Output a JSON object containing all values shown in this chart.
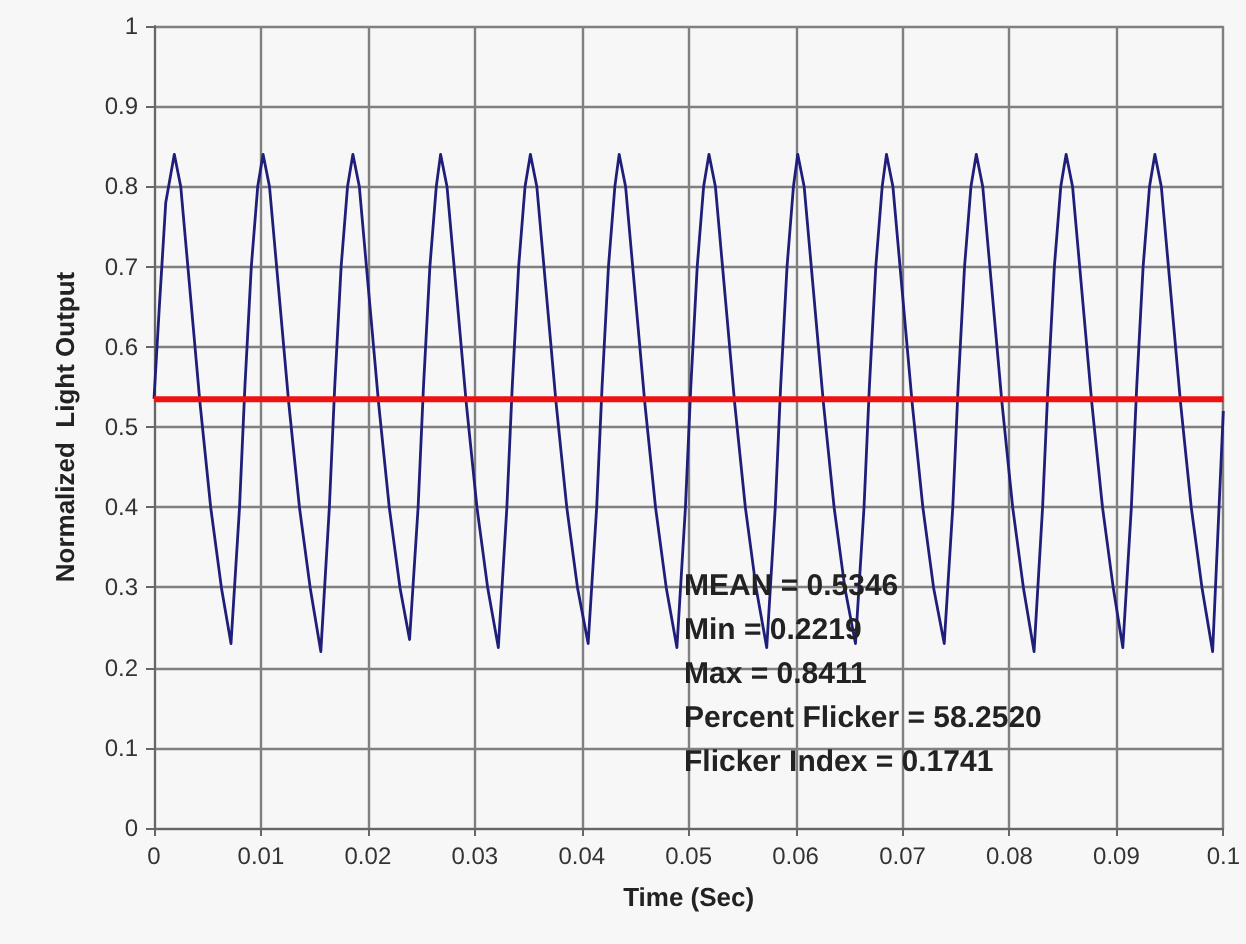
{
  "chart_data": {
    "type": "line",
    "xlabel": "Time (Sec)",
    "ylabel": "Normalized  Light Output",
    "xlim": [
      0,
      0.1
    ],
    "xticks": [
      0,
      0.01,
      0.02,
      0.03,
      0.04,
      0.05,
      0.06,
      0.07,
      0.08,
      0.09,
      0.1
    ],
    "ylim": [
      0,
      1
    ],
    "yticks": [
      0,
      0.1,
      0.2,
      0.3,
      0.4,
      0.5,
      0.6,
      0.7,
      0.8,
      0.9,
      1
    ],
    "grid": true,
    "marker": "none",
    "line_style": "solid",
    "series": [
      {
        "color": "#1f1f7a",
        "x": [
          0,
          0.0005,
          0.0011,
          0.0019,
          0.0025,
          0.0033,
          0.0043,
          0.0053,
          0.0063,
          0.0072,
          0.008,
          0.0085,
          0.0091,
          0.0097,
          0.0102,
          0.0108,
          0.0116,
          0.0126,
          0.0136,
          0.0146,
          0.0156,
          0.0164,
          0.0169,
          0.0175,
          0.0181,
          0.0186,
          0.0192,
          0.02,
          0.021,
          0.022,
          0.023,
          0.0239,
          0.0247,
          0.0252,
          0.0258,
          0.0264,
          0.0268,
          0.0274,
          0.0282,
          0.0292,
          0.0302,
          0.0312,
          0.0322,
          0.033,
          0.0335,
          0.0341,
          0.0347,
          0.0352,
          0.0358,
          0.0366,
          0.0376,
          0.0386,
          0.0396,
          0.0406,
          0.0414,
          0.0419,
          0.0425,
          0.0431,
          0.0435,
          0.0441,
          0.0449,
          0.0459,
          0.0469,
          0.0479,
          0.0489,
          0.0497,
          0.0502,
          0.0508,
          0.0514,
          0.0519,
          0.0525,
          0.0533,
          0.0543,
          0.0553,
          0.0563,
          0.0573,
          0.0581,
          0.0586,
          0.0592,
          0.0598,
          0.0602,
          0.0608,
          0.0616,
          0.0626,
          0.0636,
          0.0646,
          0.0656,
          0.0664,
          0.0669,
          0.0675,
          0.0681,
          0.0685,
          0.0691,
          0.0699,
          0.0709,
          0.0719,
          0.0729,
          0.0739,
          0.0747,
          0.0752,
          0.0758,
          0.0764,
          0.0769,
          0.0775,
          0.0783,
          0.0793,
          0.0803,
          0.0813,
          0.0823,
          0.0831,
          0.0836,
          0.0842,
          0.0848,
          0.0853,
          0.0859,
          0.0867,
          0.0877,
          0.0887,
          0.0897,
          0.0906,
          0.0914,
          0.0919,
          0.0925,
          0.0931,
          0.0936,
          0.0942,
          0.095,
          0.096,
          0.097,
          0.098,
          0.099,
          0.0996,
          0.1
        ],
        "values": [
          0.535,
          0.65,
          0.78,
          0.84,
          0.8,
          0.68,
          0.53,
          0.4,
          0.3,
          0.23,
          0.4,
          0.55,
          0.7,
          0.8,
          0.84,
          0.8,
          0.68,
          0.53,
          0.4,
          0.3,
          0.22,
          0.4,
          0.55,
          0.7,
          0.8,
          0.84,
          0.8,
          0.68,
          0.53,
          0.4,
          0.3,
          0.235,
          0.4,
          0.55,
          0.7,
          0.8,
          0.84,
          0.8,
          0.68,
          0.53,
          0.4,
          0.3,
          0.225,
          0.4,
          0.55,
          0.7,
          0.8,
          0.84,
          0.8,
          0.68,
          0.53,
          0.4,
          0.3,
          0.23,
          0.4,
          0.55,
          0.7,
          0.8,
          0.84,
          0.8,
          0.68,
          0.53,
          0.4,
          0.3,
          0.225,
          0.4,
          0.55,
          0.7,
          0.8,
          0.84,
          0.8,
          0.68,
          0.53,
          0.4,
          0.3,
          0.225,
          0.4,
          0.55,
          0.7,
          0.8,
          0.84,
          0.8,
          0.68,
          0.53,
          0.4,
          0.3,
          0.23,
          0.4,
          0.55,
          0.7,
          0.8,
          0.84,
          0.8,
          0.68,
          0.53,
          0.4,
          0.3,
          0.23,
          0.4,
          0.55,
          0.7,
          0.8,
          0.84,
          0.8,
          0.68,
          0.53,
          0.4,
          0.3,
          0.22,
          0.4,
          0.55,
          0.7,
          0.8,
          0.84,
          0.8,
          0.68,
          0.53,
          0.4,
          0.3,
          0.225,
          0.4,
          0.55,
          0.7,
          0.8,
          0.84,
          0.8,
          0.68,
          0.53,
          0.4,
          0.3,
          0.22,
          0.4,
          0.52
        ]
      }
    ],
    "ref_lines": [
      {
        "axis": "y",
        "value": 0.5346,
        "color": "#ee1111",
        "line_style": "solid"
      }
    ],
    "annotations": [
      "MEAN = 0.5346",
      "Min = 0.2219",
      "Max = 0.8411",
      "Percent Flicker = 58.2520",
      "Flicker Index = 0.1741"
    ]
  }
}
